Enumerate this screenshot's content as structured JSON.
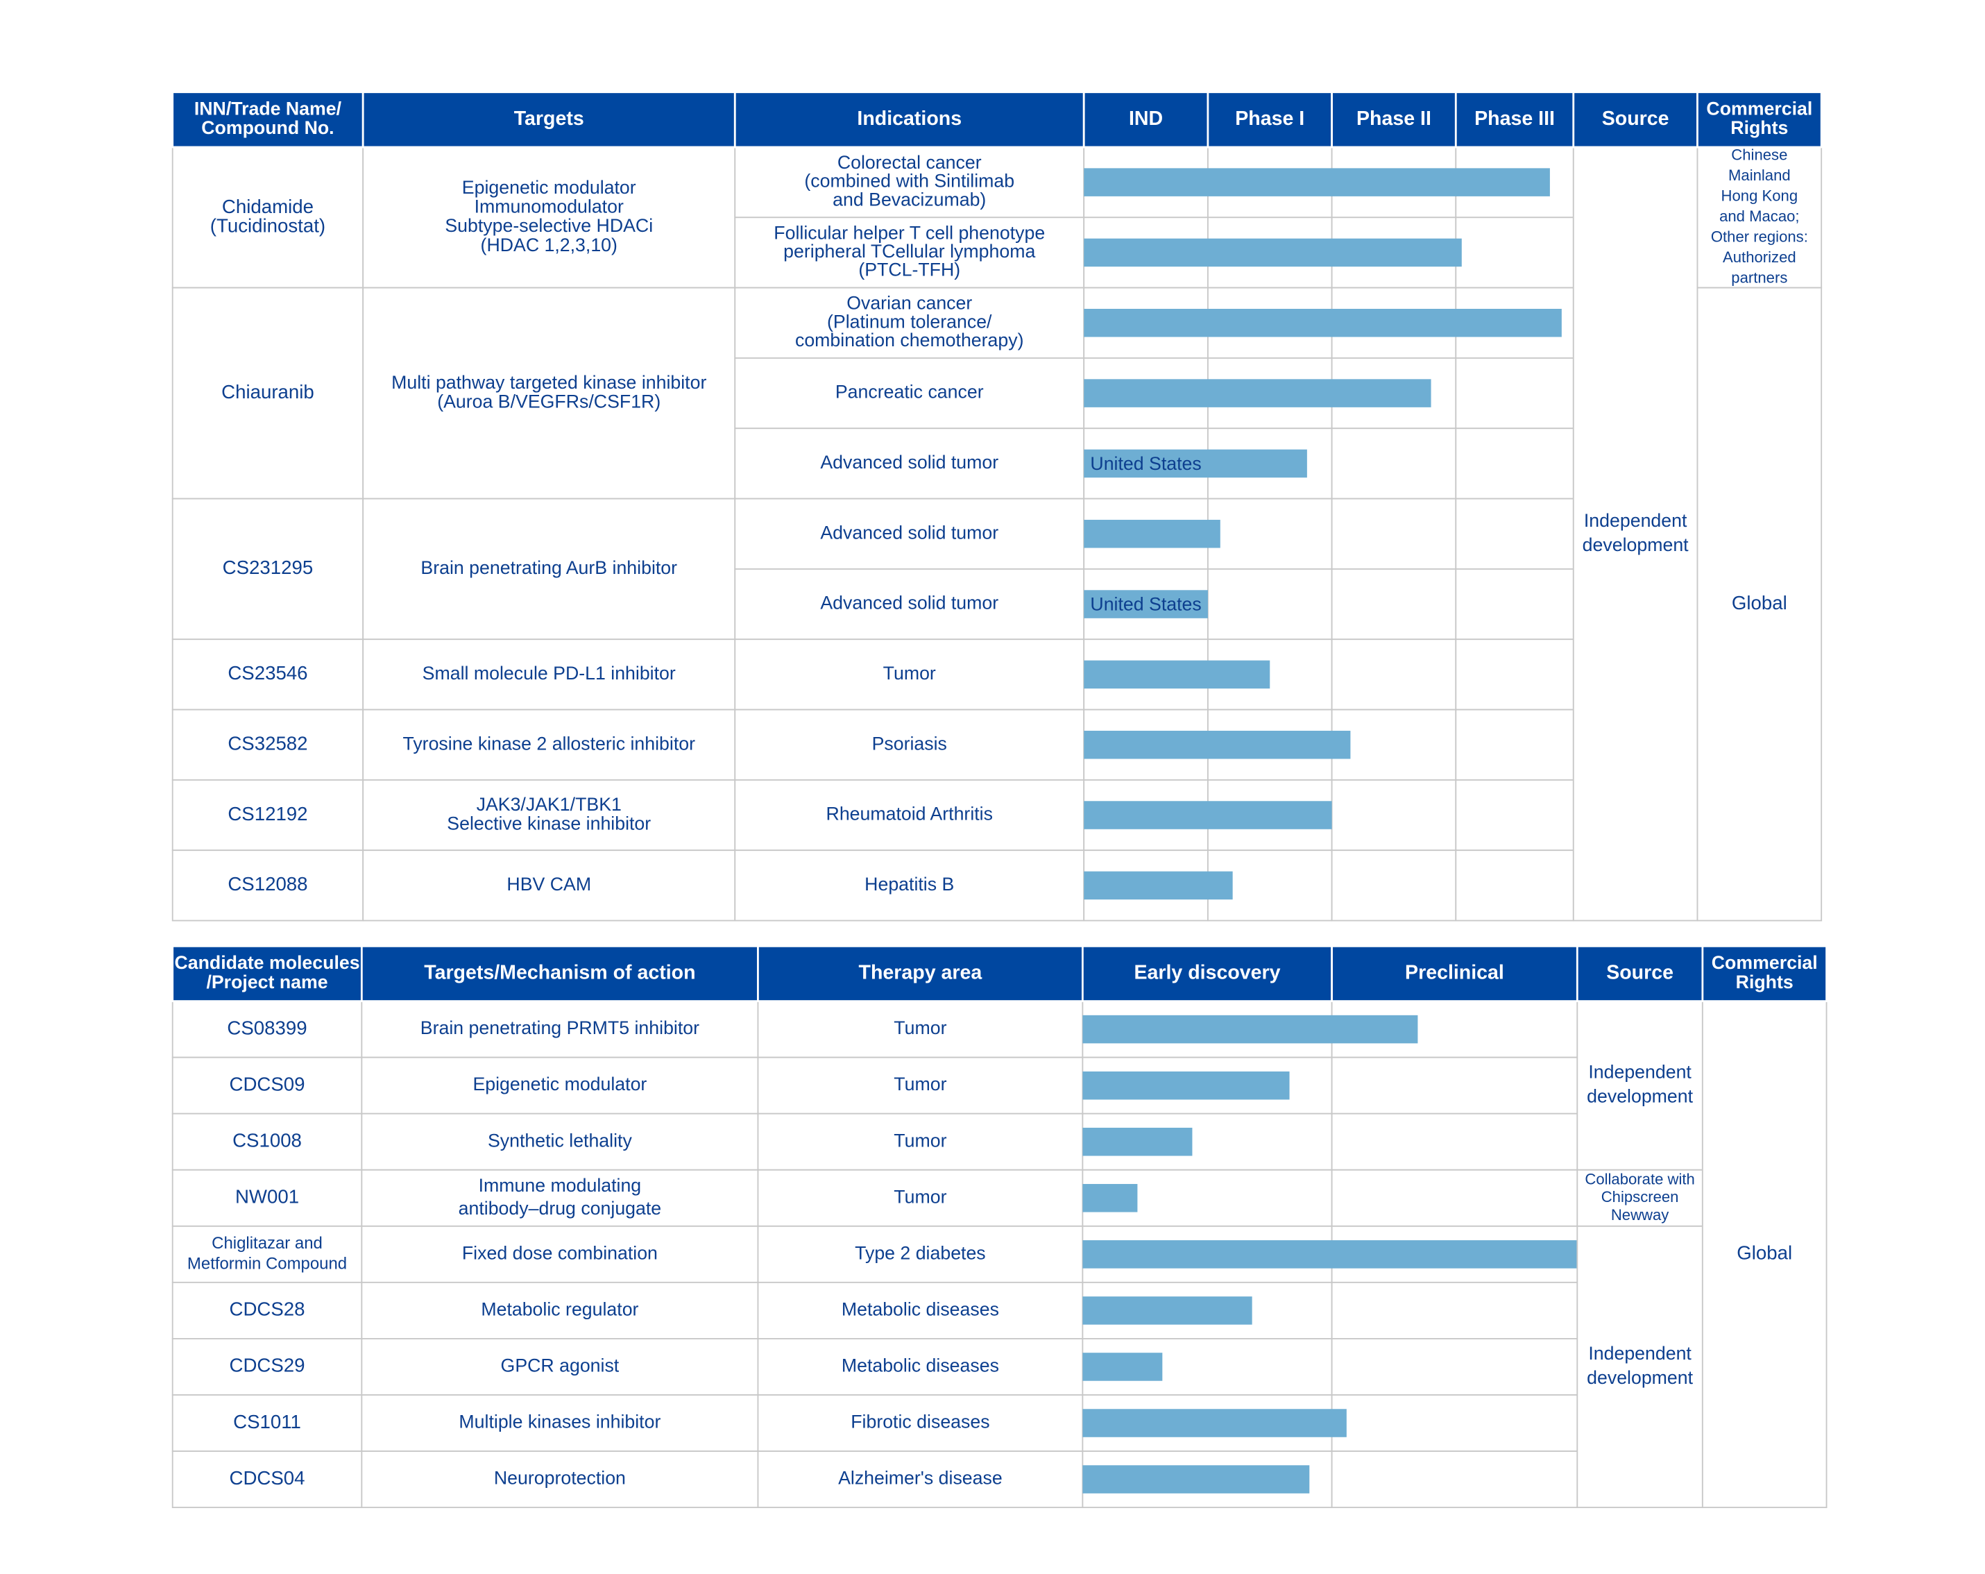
{
  "pipeline_clinical": {
    "headers": [
      [
        "INN/Trade Name/",
        "Compound No."
      ],
      [
        "Targets"
      ],
      [
        "Indications"
      ],
      [
        "IND"
      ],
      [
        "Phase I"
      ],
      [
        "Phase II"
      ],
      [
        "Phase III"
      ],
      [
        "Source"
      ],
      [
        "Commercial",
        "Rights"
      ]
    ],
    "drugs": [
      {
        "name": [
          "Chidamide",
          "(Tucidinostat)"
        ],
        "targets": [
          "Epigenetic modulator",
          "Immunomodulator",
          "Subtype-selective HDACi",
          "(HDAC 1,2,3,10)"
        ],
        "indications": [
          {
            "label": [
              "Colorectal cancer",
              "(combined with Sintilimab",
              "and Bevacizumab)"
            ],
            "progress": 3.8
          },
          {
            "label": [
              "Follicular helper T cell phenotype",
              "peripheral TCellular lymphoma",
              "(PTCL-TFH)"
            ],
            "progress": 3.05
          }
        ]
      },
      {
        "name": [
          "Chiauranib"
        ],
        "targets": [
          "Multi pathway targeted kinase inhibitor",
          "(Auroa B/VEGFRs/CSF1R)"
        ],
        "indications": [
          {
            "label": [
              "Ovarian cancer",
              "(Platinum tolerance/",
              "combination chemotherapy)"
            ],
            "progress": 3.9
          },
          {
            "label": [
              "Pancreatic cancer"
            ],
            "progress": 2.8
          },
          {
            "label": [
              "Advanced solid tumor"
            ],
            "progress": 1.8,
            "region": "United States"
          }
        ]
      },
      {
        "name": [
          "CS231295"
        ],
        "targets": [
          "Brain penetrating AurB inhibitor"
        ],
        "indications": [
          {
            "label": [
              "Advanced solid tumor"
            ],
            "progress": 1.1
          },
          {
            "label": [
              "Advanced solid tumor"
            ],
            "progress": 1.0,
            "region": "United States"
          }
        ]
      },
      {
        "name": [
          "CS23546"
        ],
        "targets": [
          "Small molecule PD-L1 inhibitor"
        ],
        "indications": [
          {
            "label": [
              "Tumor"
            ],
            "progress": 1.5
          }
        ]
      },
      {
        "name": [
          "CS32582"
        ],
        "targets": [
          "Tyrosine kinase 2 allosteric inhibitor"
        ],
        "indications": [
          {
            "label": [
              "Psoriasis"
            ],
            "progress": 2.15
          }
        ]
      },
      {
        "name": [
          "CS12192"
        ],
        "targets": [
          "JAK3/JAK1/TBK1",
          "Selective kinase inhibitor"
        ],
        "indications": [
          {
            "label": [
              "Rheumatoid Arthritis"
            ],
            "progress": 2.0
          }
        ]
      },
      {
        "name": [
          "CS12088"
        ],
        "targets": [
          "HBV CAM"
        ],
        "indications": [
          {
            "label": [
              "Hepatitis B"
            ],
            "progress": 1.2
          }
        ]
      }
    ],
    "source": [
      "Independent",
      "development"
    ],
    "rights": [
      [
        "Chinese",
        "Mainland",
        "Hong Kong",
        "and Macao;",
        "Other regions:",
        "Authorized",
        "partners"
      ],
      [
        "Global"
      ]
    ]
  },
  "pipeline_discovery": {
    "headers": [
      [
        "Candidate molecules",
        "/Project name"
      ],
      [
        "Targets/Mechanism of action"
      ],
      [
        "Therapy area"
      ],
      [
        "Early discovery"
      ],
      [
        "Preclinical"
      ],
      [
        "Source"
      ],
      [
        "Commercial",
        "Rights"
      ]
    ],
    "rows": [
      {
        "name": [
          "CS08399"
        ],
        "target": [
          "Brain penetrating PRMT5 inhibitor"
        ],
        "area": "Tumor",
        "progress": 1.35
      },
      {
        "name": [
          "CDCS09"
        ],
        "target": [
          "Epigenetic modulator"
        ],
        "area": "Tumor",
        "progress": 0.83
      },
      {
        "name": [
          "CS1008"
        ],
        "target": [
          "Synthetic lethality"
        ],
        "area": "Tumor",
        "progress": 0.44
      },
      {
        "name": [
          "NW001"
        ],
        "target": [
          "Immune modulating",
          "antibody–drug conjugate"
        ],
        "area": "Tumor",
        "progress": 0.22
      },
      {
        "name": [
          "Chiglitazar and",
          "Metformin Compound"
        ],
        "target": [
          "Fixed dose combination"
        ],
        "area": "Type 2 diabetes",
        "progress": 2.0
      },
      {
        "name": [
          "CDCS28"
        ],
        "target": [
          "Metabolic regulator"
        ],
        "area": "Metabolic diseases",
        "progress": 0.68
      },
      {
        "name": [
          "CDCS29"
        ],
        "target": [
          "GPCR agonist"
        ],
        "area": "Metabolic diseases",
        "progress": 0.32
      },
      {
        "name": [
          "CS1011"
        ],
        "target": [
          "Multiple kinases inhibitor"
        ],
        "area": "Fibrotic diseases",
        "progress": 1.06
      },
      {
        "name": [
          "CDCS04"
        ],
        "target": [
          "Neuroprotection"
        ],
        "area": "Alzheimer's disease",
        "progress": 0.91
      }
    ],
    "sources": [
      [
        "Independent",
        "development"
      ],
      [
        "Collaborate with",
        "Chipscreen",
        "Newway"
      ],
      [
        "Independent",
        "development"
      ]
    ],
    "rights": [
      "Global"
    ]
  }
}
